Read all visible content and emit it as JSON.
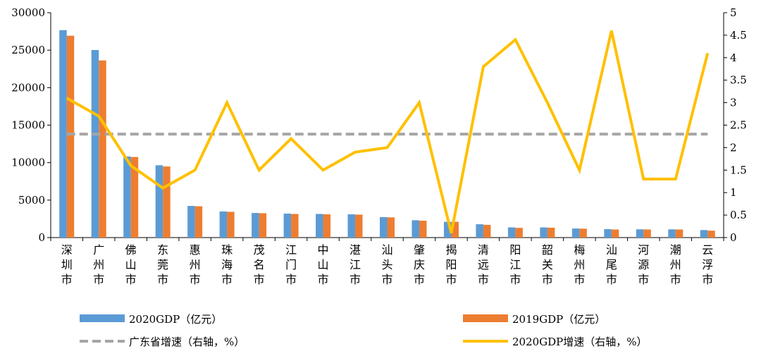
{
  "chart_data": {
    "type": "bar",
    "categories": [
      "深圳市",
      "广州市",
      "佛山市",
      "东莞市",
      "惠州市",
      "珠海市",
      "茂名市",
      "江门市",
      "中山市",
      "湛江市",
      "汕头市",
      "肇庆市",
      "揭阳市",
      "清远市",
      "阳江市",
      "韶关市",
      "梅州市",
      "汕尾市",
      "河源市",
      "潮州市",
      "云浮市"
    ],
    "series": [
      {
        "name": "2020GDP（亿元）",
        "kind": "bar",
        "axis": "left",
        "color": "#5B9BD5",
        "values": [
          27670,
          25019,
          10816,
          9650,
          4222,
          3482,
          3279,
          3201,
          3152,
          3100,
          2730,
          2312,
          2102,
          1778,
          1360,
          1353,
          1208,
          1123,
          1102,
          1097,
          1002
        ]
      },
      {
        "name": "2019GDP（亿元）",
        "kind": "bar",
        "axis": "left",
        "color": "#ED7D31",
        "values": [
          26927,
          23629,
          10751,
          9482,
          4177,
          3436,
          3252,
          3146,
          3101,
          3064,
          2694,
          2249,
          2101,
          1698,
          1292,
          1318,
          1187,
          1080,
          1080,
          1080,
          921
        ]
      },
      {
        "name": "广东省增速（右轴，%）",
        "kind": "line",
        "style": "dashed",
        "axis": "right",
        "color": "#A5A5A5",
        "values": [
          2.3,
          2.3,
          2.3,
          2.3,
          2.3,
          2.3,
          2.3,
          2.3,
          2.3,
          2.3,
          2.3,
          2.3,
          2.3,
          2.3,
          2.3,
          2.3,
          2.3,
          2.3,
          2.3,
          2.3,
          2.3
        ]
      },
      {
        "name": "2020GDP增速（右轴，%）",
        "kind": "line",
        "style": "solid",
        "axis": "right",
        "color": "#FFC000",
        "values": [
          3.1,
          2.7,
          1.6,
          1.1,
          1.5,
          3.0,
          1.5,
          2.2,
          1.5,
          1.9,
          2.0,
          3.0,
          0.1,
          3.8,
          4.4,
          3.0,
          1.5,
          4.6,
          1.3,
          1.3,
          4.1
        ]
      }
    ],
    "y_left": {
      "ticks": [
        "0",
        "5000",
        "10000",
        "15000",
        "20000",
        "25000",
        "30000"
      ],
      "lim": [
        0,
        30000
      ]
    },
    "y_right": {
      "ticks": [
        "0",
        "0.5",
        "1",
        "1.5",
        "2",
        "2.5",
        "3",
        "3.5",
        "4",
        "4.5",
        "5"
      ],
      "lim": [
        0,
        5
      ]
    },
    "grid": false,
    "legend_position": "bottom"
  }
}
